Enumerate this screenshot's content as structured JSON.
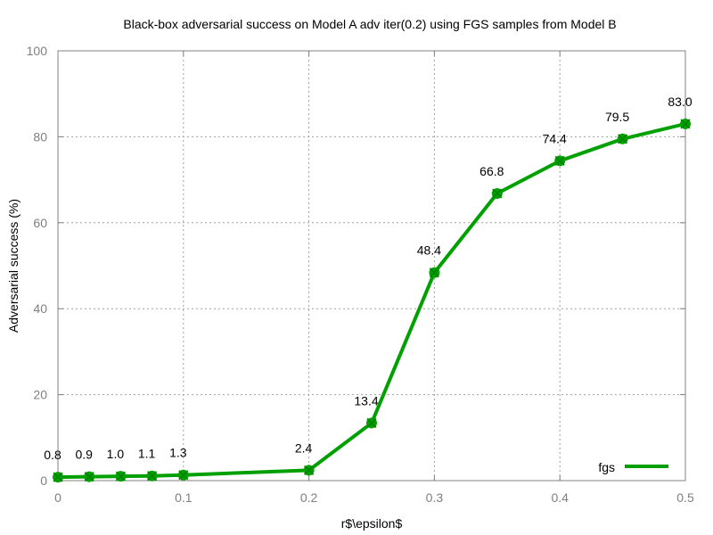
{
  "chart_data": {
    "type": "line",
    "title": "Black-box adversarial success on Model A adv iter(0.2) using FGS samples from Model B",
    "xlabel": "r$\\epsilon$",
    "ylabel": "Adversarial success (%)",
    "xlim": [
      0,
      0.5
    ],
    "ylim": [
      0,
      100
    ],
    "xticks": [
      0,
      0.1,
      0.2,
      0.3,
      0.4,
      0.5
    ],
    "xtick_labels": [
      "0",
      "0.1",
      "0.2",
      "0.3",
      "0.4",
      "0.5"
    ],
    "yticks": [
      0,
      20,
      40,
      60,
      80,
      100
    ],
    "ytick_labels": [
      "0",
      "20",
      "40",
      "60",
      "80",
      "100"
    ],
    "grid": true,
    "legend_position": "bottom-right",
    "series": [
      {
        "name": "fgs",
        "color": "#00a000",
        "x": [
          0,
          0.025,
          0.05,
          0.075,
          0.1,
          0.2,
          0.25,
          0.3,
          0.35,
          0.4,
          0.45,
          0.5
        ],
        "y": [
          0.8,
          0.9,
          1.0,
          1.1,
          1.3,
          2.4,
          13.4,
          48.4,
          66.8,
          74.4,
          79.5,
          83.0
        ],
        "labels": [
          "0.8",
          "0.9",
          "1.0",
          "1.1",
          "1.3",
          "2.4",
          "13.4",
          "48.4",
          "66.8",
          "74.4",
          "79.5",
          "83.0"
        ]
      }
    ]
  }
}
